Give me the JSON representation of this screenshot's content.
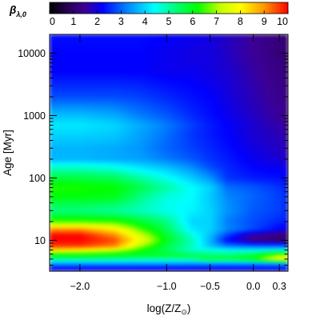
{
  "chart_data": {
    "type": "heatmap",
    "colorbar": {
      "label": "β",
      "label_sub": "λ,0",
      "min": 0,
      "max": 10,
      "ticks": [
        "0",
        "1",
        "2",
        "3",
        "4",
        "5",
        "6",
        "7",
        "8",
        "9",
        "10"
      ],
      "colormap": [
        "#000000",
        "#2a0056",
        "#3c0096",
        "#0000ff",
        "#0096ff",
        "#00ffff",
        "#00ff66",
        "#00ff00",
        "#c8ff00",
        "#ffff00",
        "#ff9600",
        "#ff0000"
      ],
      "colormap_stops": [
        0,
        0.08,
        0.15,
        0.22,
        0.34,
        0.44,
        0.54,
        0.62,
        0.72,
        0.8,
        0.9,
        1
      ]
    },
    "x_axis": {
      "label_text": "log(Z/Z",
      "label_sub": "⊙",
      "label_close": ")",
      "min": -2.35,
      "max": 0.4,
      "ticks": [
        {
          "value": -2.0,
          "label": "−2.0"
        },
        {
          "value": -1.0,
          "label": "−1.0"
        },
        {
          "value": -0.5,
          "label": "−0.5"
        },
        {
          "value": 0.0,
          "label": "0.0"
        },
        {
          "value": 0.3,
          "label": "0.3"
        }
      ]
    },
    "y_axis": {
      "label": "Age [Myr]",
      "scale": "log",
      "min": 3.2,
      "max": 20000,
      "ticks": [
        {
          "value": 10,
          "label": "10"
        },
        {
          "value": 100,
          "label": "100"
        },
        {
          "value": 1000,
          "label": "1000"
        },
        {
          "value": 10000,
          "label": "10000"
        }
      ]
    },
    "metallicity_columns": [
      -2.35,
      -2.0,
      -1.6,
      -1.3,
      -1.0,
      -0.7,
      -0.5,
      -0.3,
      0.0,
      0.3,
      0.4
    ],
    "age_rows_myr": [
      3.2,
      3.6,
      4.2,
      5,
      6,
      7,
      8,
      10,
      12,
      15,
      20,
      30,
      50,
      70,
      100,
      150,
      200,
      300,
      500,
      700,
      1000,
      2000,
      5000,
      10000,
      20000
    ],
    "values": [
      [
        1.9,
        1.9,
        1.9,
        1.9,
        1.9,
        1.9,
        1.9,
        1.9,
        1.9,
        1.9,
        1.9
      ],
      [
        2.4,
        2.4,
        2.4,
        2.4,
        2.4,
        2.4,
        2.4,
        2.4,
        2.4,
        2.4,
        2.4
      ],
      [
        3.4,
        3.4,
        3.4,
        3.4,
        3.4,
        3.3,
        3.3,
        3.3,
        3.3,
        3.4,
        3.4
      ],
      [
        5.2,
        5.2,
        5.1,
        5.0,
        5.0,
        5.2,
        6.0,
        5.8,
        6.2,
        8.2,
        8.5
      ],
      [
        6.2,
        6.3,
        6.2,
        6.0,
        5.9,
        5.5,
        5.0,
        5.2,
        5.5,
        6.5,
        6.6
      ],
      [
        8.3,
        8.0,
        7.3,
        6.3,
        5.5,
        4.6,
        4.8,
        4.3,
        4.3,
        4.4,
        4.4
      ],
      [
        9.6,
        9.6,
        9.1,
        7.0,
        5.6,
        4.8,
        3.8,
        3.3,
        3.1,
        3.1,
        3.1
      ],
      [
        10.0,
        10.0,
        9.5,
        7.8,
        6.0,
        4.8,
        3.7,
        2.2,
        1.4,
        1.1,
        1.0
      ],
      [
        10.0,
        10.0,
        9.1,
        7.4,
        5.8,
        4.6,
        3.8,
        2.7,
        1.5,
        1.2,
        1.1
      ],
      [
        9.0,
        9.0,
        8.1,
        6.6,
        5.5,
        4.2,
        4.0,
        3.3,
        2.8,
        2.2,
        2.0
      ],
      [
        6.5,
        6.5,
        6.4,
        5.8,
        5.2,
        4.0,
        4.0,
        3.2,
        2.8,
        2.5,
        2.4
      ],
      [
        5.2,
        5.2,
        5.0,
        4.8,
        4.5,
        4.3,
        4.0,
        3.4,
        2.9,
        2.7,
        2.5
      ],
      [
        6.1,
        6.1,
        6.0,
        5.2,
        4.6,
        4.4,
        3.9,
        3.3,
        3.0,
        2.7,
        2.5
      ],
      [
        6.4,
        6.3,
        6.2,
        5.6,
        5.0,
        4.4,
        4.0,
        3.1,
        2.9,
        2.6,
        2.4
      ],
      [
        5.7,
        5.7,
        5.5,
        5.0,
        4.5,
        3.9,
        3.4,
        2.6,
        2.4,
        2.3,
        2.2
      ],
      [
        4.7,
        4.7,
        4.5,
        4.1,
        3.8,
        3.3,
        2.8,
        2.5,
        2.2,
        2.1,
        2.0
      ],
      [
        3.7,
        3.7,
        3.6,
        3.5,
        3.2,
        2.9,
        2.6,
        2.4,
        2.1,
        1.9,
        1.8
      ],
      [
        3.7,
        3.7,
        3.6,
        3.4,
        3.0,
        2.7,
        2.5,
        2.3,
        2.0,
        1.8,
        1.7
      ],
      [
        4.0,
        4.0,
        3.9,
        3.5,
        3.1,
        2.6,
        2.4,
        2.2,
        1.9,
        1.7,
        1.6
      ],
      [
        4.2,
        4.2,
        4.0,
        3.6,
        3.2,
        2.7,
        2.4,
        2.2,
        1.9,
        1.6,
        1.5
      ],
      [
        3.8,
        3.8,
        3.6,
        3.2,
        2.9,
        2.5,
        2.3,
        2.1,
        1.8,
        1.5,
        1.4
      ],
      [
        2.8,
        2.8,
        2.8,
        2.7,
        2.5,
        2.3,
        2.2,
        2.0,
        1.7,
        1.4,
        1.3
      ],
      [
        2.2,
        2.2,
        2.2,
        2.2,
        2.1,
        2.1,
        2.0,
        1.9,
        1.6,
        1.3,
        1.2
      ],
      [
        2.2,
        2.2,
        2.2,
        2.2,
        2.1,
        2.0,
        2.0,
        1.8,
        1.5,
        1.2,
        1.1
      ],
      [
        2.3,
        2.3,
        2.3,
        2.3,
        2.2,
        2.1,
        2.0,
        1.8,
        1.5,
        1.2,
        1.1
      ]
    ]
  }
}
